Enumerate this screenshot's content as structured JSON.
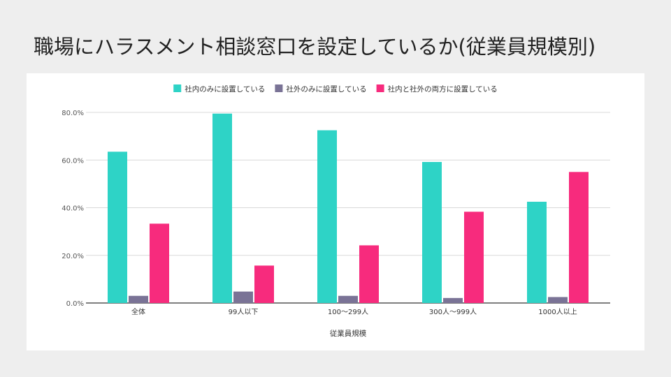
{
  "slide": {
    "title": "職場にハラスメント相談窓口を設定しているか(従業員規模別)"
  },
  "chart_data": {
    "type": "bar",
    "title": "",
    "xlabel": "従業員規模",
    "ylabel": "",
    "ylim": [
      0,
      80
    ],
    "y_tick_values": [
      0,
      20,
      40,
      60,
      80
    ],
    "y_tick_labels": [
      "0.0%",
      "20.0%",
      "40.0%",
      "60.0%",
      "80.0%"
    ],
    "grid": true,
    "legend_position": "top",
    "categories": [
      "全体",
      "99人以下",
      "100〜299人",
      "300人〜999人",
      "1000人以上"
    ],
    "series": [
      {
        "name": "社内のみに設置している",
        "color": "#2ed3c6",
        "values": [
          63.5,
          79.5,
          72.5,
          59.2,
          42.5
        ]
      },
      {
        "name": "社外のみに設置している",
        "color": "#7a7396",
        "values": [
          3.0,
          4.8,
          3.0,
          2.1,
          2.5
        ]
      },
      {
        "name": "社内と社外の両方に設置している",
        "color": "#f72b7d",
        "values": [
          33.3,
          15.7,
          24.2,
          38.3,
          55.0
        ]
      }
    ]
  }
}
